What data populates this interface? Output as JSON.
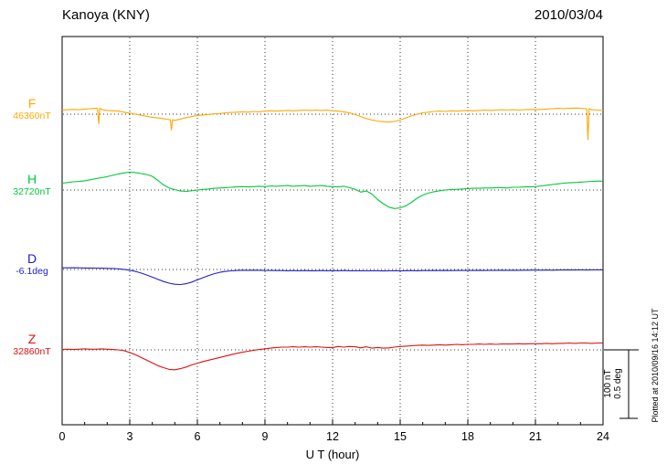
{
  "header": {
    "title": "Kanoya (KNY)",
    "date": "2010/03/04"
  },
  "footer": {
    "plotted_at": "Plotted at 2010/09/16 14:12 UT"
  },
  "scale_bar": {
    "nt": "100 nT",
    "deg": "0.5 deg"
  },
  "chart_data": {
    "type": "line",
    "title": "Kanoya (KNY)",
    "date": "2010/03/04",
    "xlabel": "U T (hour)",
    "ylabel": "",
    "xlim": [
      0,
      24
    ],
    "x_step": 0.25,
    "x_ticks": [
      0,
      3,
      6,
      9,
      12,
      15,
      18,
      21,
      24
    ],
    "grid": "vertical dotted lines every 3 h; dotted horizontal baseline per trace",
    "scale": {
      "nT_per_div": 100,
      "deg_per_div": 0.5
    },
    "series": [
      {
        "name": "F",
        "unit": "nT",
        "baseline_label": "46360nT",
        "baseline_value": 46360,
        "color": "#ffa800",
        "values": [
          6,
          6.5,
          7,
          6.5,
          7.5,
          8,
          8.5,
          7,
          5.5,
          5,
          4.5,
          3,
          1.5,
          0,
          -1.5,
          -3,
          -4.5,
          -5.5,
          -6.5,
          -8,
          -9,
          -7,
          -5,
          -3.5,
          -2,
          -1,
          -0.5,
          0.5,
          1,
          2,
          2.5,
          3,
          3.5,
          3,
          4,
          3.5,
          4.5,
          5,
          4.5,
          5,
          5.5,
          5,
          5.5,
          6,
          5.5,
          6,
          5.5,
          6,
          5,
          4.5,
          3.5,
          2,
          -0.5,
          -3.5,
          -6.5,
          -8.5,
          -10,
          -11,
          -11.5,
          -10.5,
          -8.5,
          -5.5,
          -2.5,
          0,
          2,
          3,
          4,
          4.5,
          4,
          5,
          4.5,
          5,
          5.5,
          5,
          5.5,
          6,
          5.5,
          6,
          6.5,
          6,
          6.5,
          6,
          6.5,
          7,
          6.5,
          7,
          7.5,
          8,
          8.5,
          8,
          8.5,
          9,
          8.5,
          8,
          6.5,
          6,
          5.5
        ],
        "spikes": [
          {
            "t": 1.62,
            "v": -14
          },
          {
            "t": 4.85,
            "v": -23
          },
          {
            "t": 23.33,
            "v": -37
          }
        ]
      },
      {
        "name": "H",
        "unit": "nT",
        "baseline_label": "32720nT",
        "baseline_value": 32720,
        "color": "#00c83c",
        "values": [
          10,
          11,
          12,
          12.5,
          13.5,
          15,
          16.5,
          18,
          19.5,
          21.5,
          23.5,
          25,
          26,
          25.5,
          24,
          22.5,
          20,
          14,
          7.5,
          3,
          0.5,
          -1.5,
          -2,
          -1,
          0,
          1,
          1.5,
          2.5,
          3,
          3.5,
          4,
          4.5,
          5,
          4.5,
          5,
          5.5,
          5,
          6,
          5.5,
          6,
          6.5,
          5.5,
          6,
          6.5,
          5.5,
          6,
          6.5,
          5.5,
          5,
          4.5,
          5.5,
          3.5,
          1,
          -3,
          -1.5,
          -6,
          -14,
          -20,
          -25,
          -27,
          -26,
          -23,
          -18,
          -12,
          -7.5,
          -4.5,
          -2.5,
          -1,
          0,
          0.5,
          1,
          1.5,
          2,
          2.5,
          2.5,
          3,
          3,
          3.5,
          3.5,
          3,
          4,
          4,
          4.5,
          4.5,
          5,
          6,
          7,
          8,
          9,
          10,
          10.5,
          11,
          11.5,
          12,
          12.5,
          13,
          13
        ],
        "spikes": []
      },
      {
        "name": "D",
        "unit": "deg",
        "baseline_label": "-6.1deg",
        "baseline_value": -6.1,
        "color": "#2020c8",
        "values": [
          0.012,
          0.012,
          0.013,
          0.012,
          0.011,
          0.011,
          0.01,
          0.009,
          0.008,
          0.007,
          0.005,
          0.001,
          -0.005,
          -0.014,
          -0.026,
          -0.04,
          -0.056,
          -0.072,
          -0.088,
          -0.1,
          -0.108,
          -0.11,
          -0.104,
          -0.092,
          -0.076,
          -0.06,
          -0.044,
          -0.031,
          -0.021,
          -0.014,
          -0.01,
          -0.007,
          -0.005,
          -0.006,
          -0.005,
          -0.006,
          -0.007,
          -0.007,
          -0.008,
          -0.008,
          -0.009,
          -0.008,
          -0.009,
          -0.008,
          -0.009,
          -0.009,
          -0.008,
          -0.009,
          -0.008,
          -0.009,
          -0.008,
          -0.009,
          -0.01,
          -0.009,
          -0.01,
          -0.009,
          -0.01,
          -0.011,
          -0.01,
          -0.009,
          -0.01,
          -0.009,
          -0.008,
          -0.009,
          -0.008,
          -0.008,
          -0.007,
          -0.008,
          -0.007,
          -0.008,
          -0.007,
          -0.007,
          -0.006,
          -0.007,
          -0.006,
          -0.007,
          -0.006,
          -0.006,
          -0.005,
          -0.006,
          -0.005,
          -0.006,
          -0.005,
          -0.005,
          -0.004,
          -0.005,
          -0.004,
          -0.005,
          -0.004,
          -0.004,
          -0.003,
          -0.004,
          -0.003,
          -0.004,
          -0.003,
          -0.003,
          -0.003
        ],
        "spikes": []
      },
      {
        "name": "Z",
        "unit": "nT",
        "baseline_label": "32860nT",
        "baseline_value": 32860,
        "color": "#e01010",
        "values": [
          0.5,
          1,
          0.5,
          1,
          1.5,
          1,
          1,
          1.5,
          1,
          0.5,
          0,
          -1,
          -4,
          -7,
          -11,
          -15,
          -19,
          -23,
          -26,
          -28.5,
          -29,
          -27.5,
          -25,
          -22,
          -19.5,
          -17,
          -15,
          -13,
          -11,
          -9,
          -7,
          -5,
          -3.5,
          -2,
          -0.5,
          0.5,
          1.5,
          2.5,
          3.5,
          4,
          4,
          4.5,
          4,
          4.5,
          4,
          4.5,
          4,
          3.5,
          3.5,
          5,
          4,
          5,
          4.5,
          3,
          4.5,
          2.5,
          3.5,
          2.5,
          3,
          4,
          5,
          5.5,
          6,
          6.5,
          7,
          6.5,
          7,
          7.5,
          7,
          7.5,
          8,
          7.5,
          8,
          8,
          8.5,
          8,
          8.5,
          8,
          8.5,
          8.5,
          8.5,
          9,
          8.5,
          9,
          9,
          9,
          9.5,
          9,
          9.5,
          9.5,
          10,
          9.5,
          10,
          10,
          9.5,
          10,
          10
        ],
        "spikes": []
      }
    ]
  }
}
